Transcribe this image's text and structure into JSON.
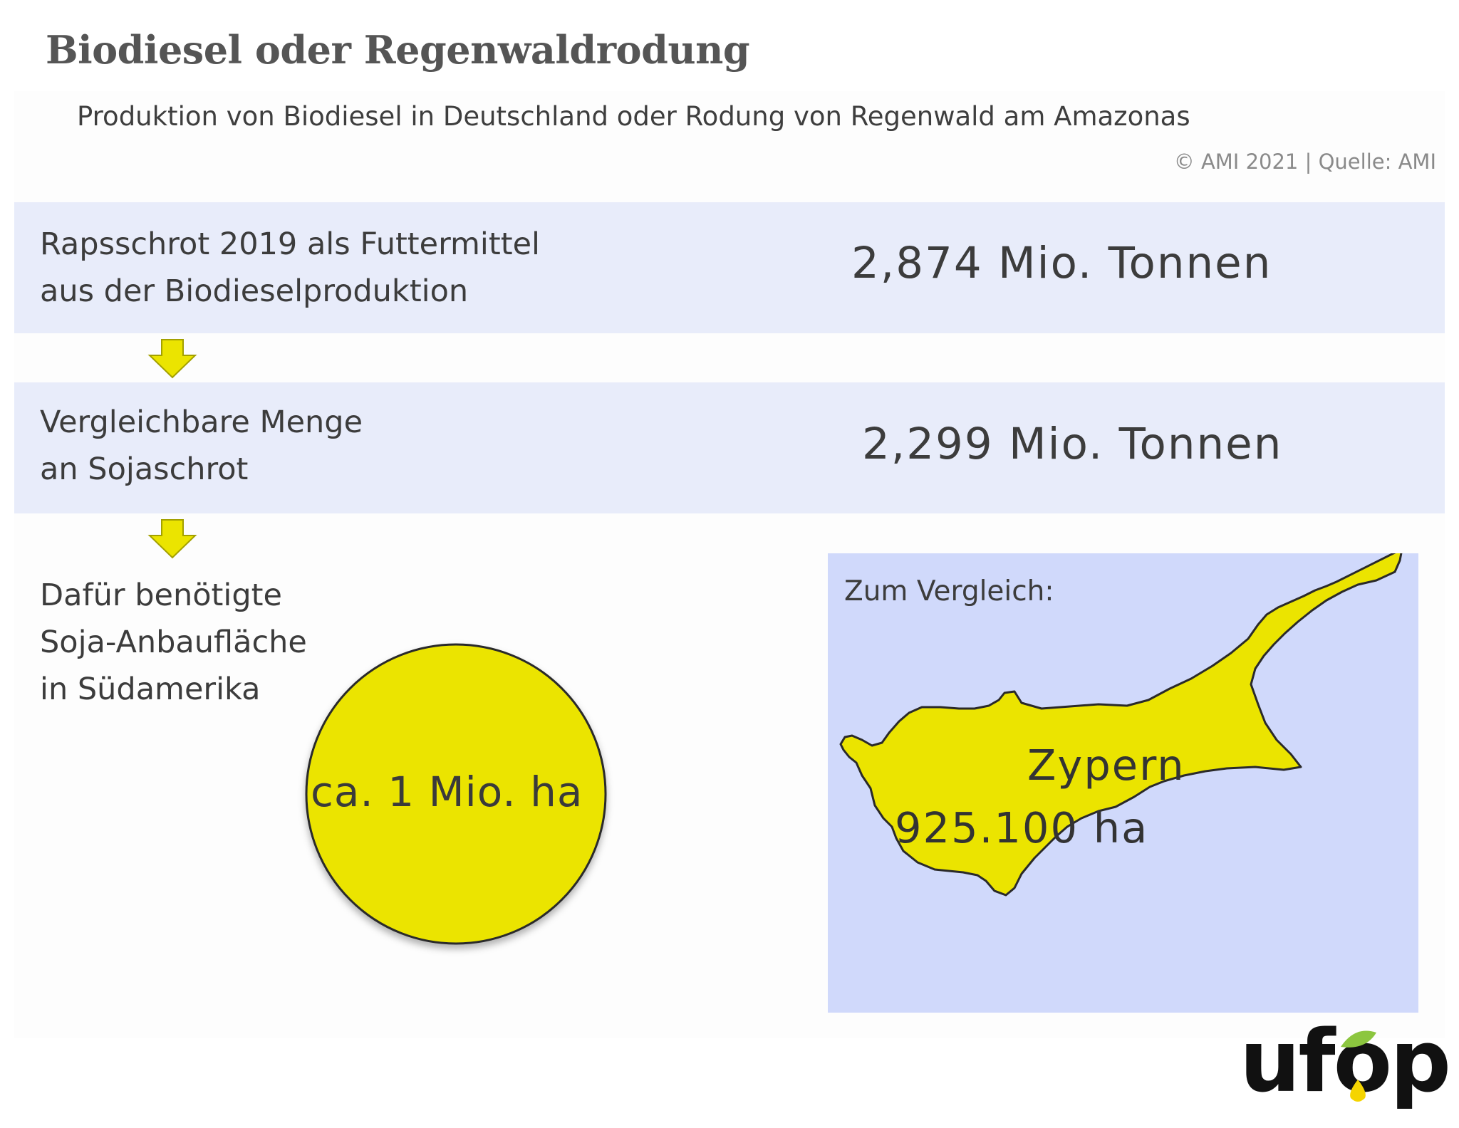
{
  "header": {
    "title": "Biodiesel oder Regenwaldrodung",
    "subtitle": "Produktion von Biodiesel in Deutschland oder Rodung von Regenwald am Amazonas",
    "source": "© AMI 2021 | Quelle: AMI"
  },
  "rows": [
    {
      "label_line1": "Rapsschrot 2019 als Futtermittel",
      "label_line2": "aus der Biodieselproduktion",
      "value": "2,874 Mio. Tonnen"
    },
    {
      "label_line1": "Vergleichbare Menge",
      "label_line2": "an Sojaschrot",
      "value": "2,299 Mio. Tonnen"
    }
  ],
  "area": {
    "label_line1": "Dafür benötigte",
    "label_line2": "Soja-Anbaufläche",
    "label_line3": "in Südamerika",
    "circle_value": "ca. 1 Mio. ha"
  },
  "comparison": {
    "label": "Zum Vergleich:",
    "country": "Zypern",
    "country_area": "925.100 ha"
  },
  "logo": {
    "text": "ufop"
  },
  "colors": {
    "band": "#e8ecfa",
    "compare_box": "#d0d9fb",
    "accent_yellow": "#ebe400",
    "logo_green": "#8cc63f",
    "logo_yellow": "#f5d400"
  },
  "icons": {
    "arrow": "arrow-down-icon",
    "map": "cyprus-map-icon",
    "logo": "ufop-logo-icon"
  }
}
